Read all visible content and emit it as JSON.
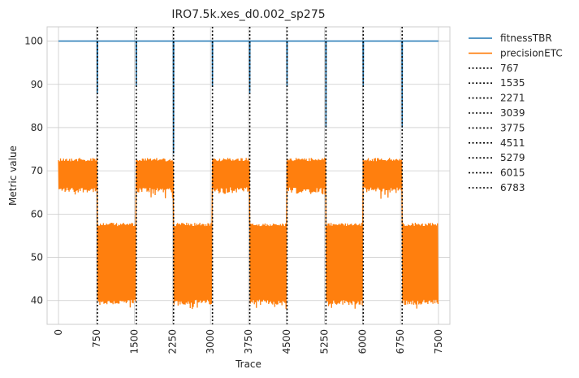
{
  "chart_data": {
    "type": "line",
    "title": "IRO7.5k.xes_d0.002_sp275",
    "xlabel": "Trace",
    "ylabel": "Metric value",
    "xlim": [
      -225,
      7725
    ],
    "ylim": [
      34.5,
      103.3
    ],
    "x_ticks": [
      0,
      750,
      1500,
      2250,
      3000,
      3750,
      4500,
      5250,
      6000,
      6750,
      7500
    ],
    "y_ticks": [
      40,
      50,
      60,
      70,
      80,
      90,
      100
    ],
    "grid": true,
    "legend_position": "outside-right",
    "drift_points": [
      767,
      1535,
      2271,
      3039,
      3775,
      4511,
      5279,
      6015,
      6783
    ],
    "series": [
      {
        "name": "fitnessTBR",
        "color": "#1f77b4",
        "baseline": 100,
        "x_end": 7500,
        "dips": [
          {
            "x": 767,
            "min": 88
          },
          {
            "x": 1535,
            "min": 89.5
          },
          {
            "x": 2271,
            "min": 74
          },
          {
            "x": 3039,
            "min": 89.5
          },
          {
            "x": 3775,
            "min": 88
          },
          {
            "x": 4511,
            "min": 89.5
          },
          {
            "x": 5279,
            "min": 80
          },
          {
            "x": 6015,
            "min": 89.5
          },
          {
            "x": 6783,
            "min": 80
          }
        ]
      },
      {
        "name": "precisionETC",
        "color": "#ff7f0e",
        "segments": [
          {
            "x_start": 0,
            "x_end": 767,
            "top": 73,
            "bottom": 65,
            "dip_min": 63.5
          },
          {
            "x_start": 767,
            "x_end": 1535,
            "top": 58,
            "bottom": 39,
            "dip_min": 38
          },
          {
            "x_start": 1535,
            "x_end": 2271,
            "top": 73,
            "bottom": 65,
            "dip_min": 63.5
          },
          {
            "x_start": 2271,
            "x_end": 3039,
            "top": 58,
            "bottom": 39,
            "dip_min": 38
          },
          {
            "x_start": 3039,
            "x_end": 3775,
            "top": 73,
            "bottom": 65,
            "dip_min": 64.5
          },
          {
            "x_start": 3775,
            "x_end": 4511,
            "top": 58,
            "bottom": 39,
            "dip_min": 38
          },
          {
            "x_start": 4511,
            "x_end": 5279,
            "top": 73,
            "bottom": 65,
            "dip_min": 64.5
          },
          {
            "x_start": 5279,
            "x_end": 6015,
            "top": 58,
            "bottom": 39,
            "dip_min": 38
          },
          {
            "x_start": 6015,
            "x_end": 6783,
            "top": 73,
            "bottom": 65,
            "dip_min": 63.5
          },
          {
            "x_start": 6783,
            "x_end": 7500,
            "top": 58,
            "bottom": 39,
            "dip_min": 38
          }
        ]
      }
    ],
    "legend": [
      "fitnessTBR",
      "precisionETC",
      "767",
      "1535",
      "2271",
      "3039",
      "3775",
      "4511",
      "5279",
      "6015",
      "6783"
    ]
  }
}
